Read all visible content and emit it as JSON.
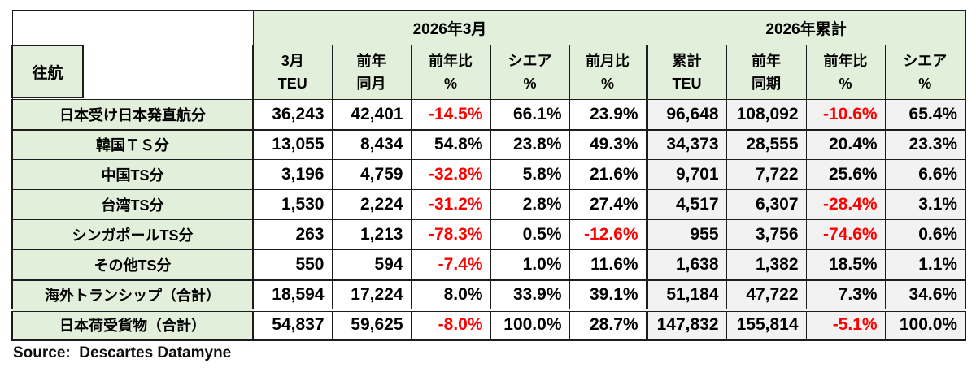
{
  "page": {
    "source_note": "Source:  Descartes Datamyne"
  },
  "colors": {
    "header_green": "#e2efda",
    "right_block_gray": "#f2f2f2",
    "negative_red": "#ff0000",
    "border_black": "#1c1c1c"
  },
  "table": {
    "corner_label": "往航",
    "groups": [
      {
        "label": "2026年3月",
        "colspan": 5
      },
      {
        "label": "2026年累計",
        "colspan": 4
      }
    ],
    "columns": [
      {
        "top": "3月",
        "bottom": "TEU"
      },
      {
        "top": "前年",
        "bottom": "同月"
      },
      {
        "top": "前年比",
        "bottom": "%"
      },
      {
        "top": "シエア",
        "bottom": "%"
      },
      {
        "top": "前月比",
        "bottom": "%"
      },
      {
        "top": "累計",
        "bottom": "TEU"
      },
      {
        "top": "前年",
        "bottom": "同期"
      },
      {
        "top": "前年比",
        "bottom": "%"
      },
      {
        "top": "シエア",
        "bottom": "%"
      }
    ],
    "rows": [
      {
        "label": "日本受け日本発直航分",
        "values": [
          "36,243",
          "42,401",
          "-14.5%",
          "66.1%",
          "23.9%",
          "96,648",
          "108,092",
          "-10.6%",
          "65.4%"
        ]
      },
      {
        "label": "韓国ＴＳ分",
        "values": [
          "13,055",
          "8,434",
          "54.8%",
          "23.8%",
          "49.3%",
          "34,373",
          "28,555",
          "20.4%",
          "23.3%"
        ]
      },
      {
        "label": "中国TS分",
        "values": [
          "3,196",
          "4,759",
          "-32.8%",
          "5.8%",
          "21.6%",
          "9,701",
          "7,722",
          "25.6%",
          "6.6%"
        ]
      },
      {
        "label": "台湾TS分",
        "values": [
          "1,530",
          "2,224",
          "-31.2%",
          "2.8%",
          "27.4%",
          "4,517",
          "6,307",
          "-28.4%",
          "3.1%"
        ]
      },
      {
        "label": "シンガポールTS分",
        "values": [
          "263",
          "1,213",
          "-78.3%",
          "0.5%",
          "-12.6%",
          "955",
          "3,756",
          "-74.6%",
          "0.6%"
        ]
      },
      {
        "label": "その他TS分",
        "values": [
          "550",
          "594",
          "-7.4%",
          "1.0%",
          "11.6%",
          "1,638",
          "1,382",
          "18.5%",
          "1.1%"
        ]
      },
      {
        "label": "海外トランシップ（合計）",
        "values": [
          "18,594",
          "17,224",
          "8.0%",
          "33.9%",
          "39.1%",
          "51,184",
          "47,722",
          "7.3%",
          "34.6%"
        ]
      },
      {
        "label": "日本荷受貨物（合計）",
        "values": [
          "54,837",
          "59,625",
          "-8.0%",
          "100.0%",
          "28.7%",
          "147,832",
          "155,814",
          "-5.1%",
          "100.0%"
        ]
      }
    ]
  }
}
